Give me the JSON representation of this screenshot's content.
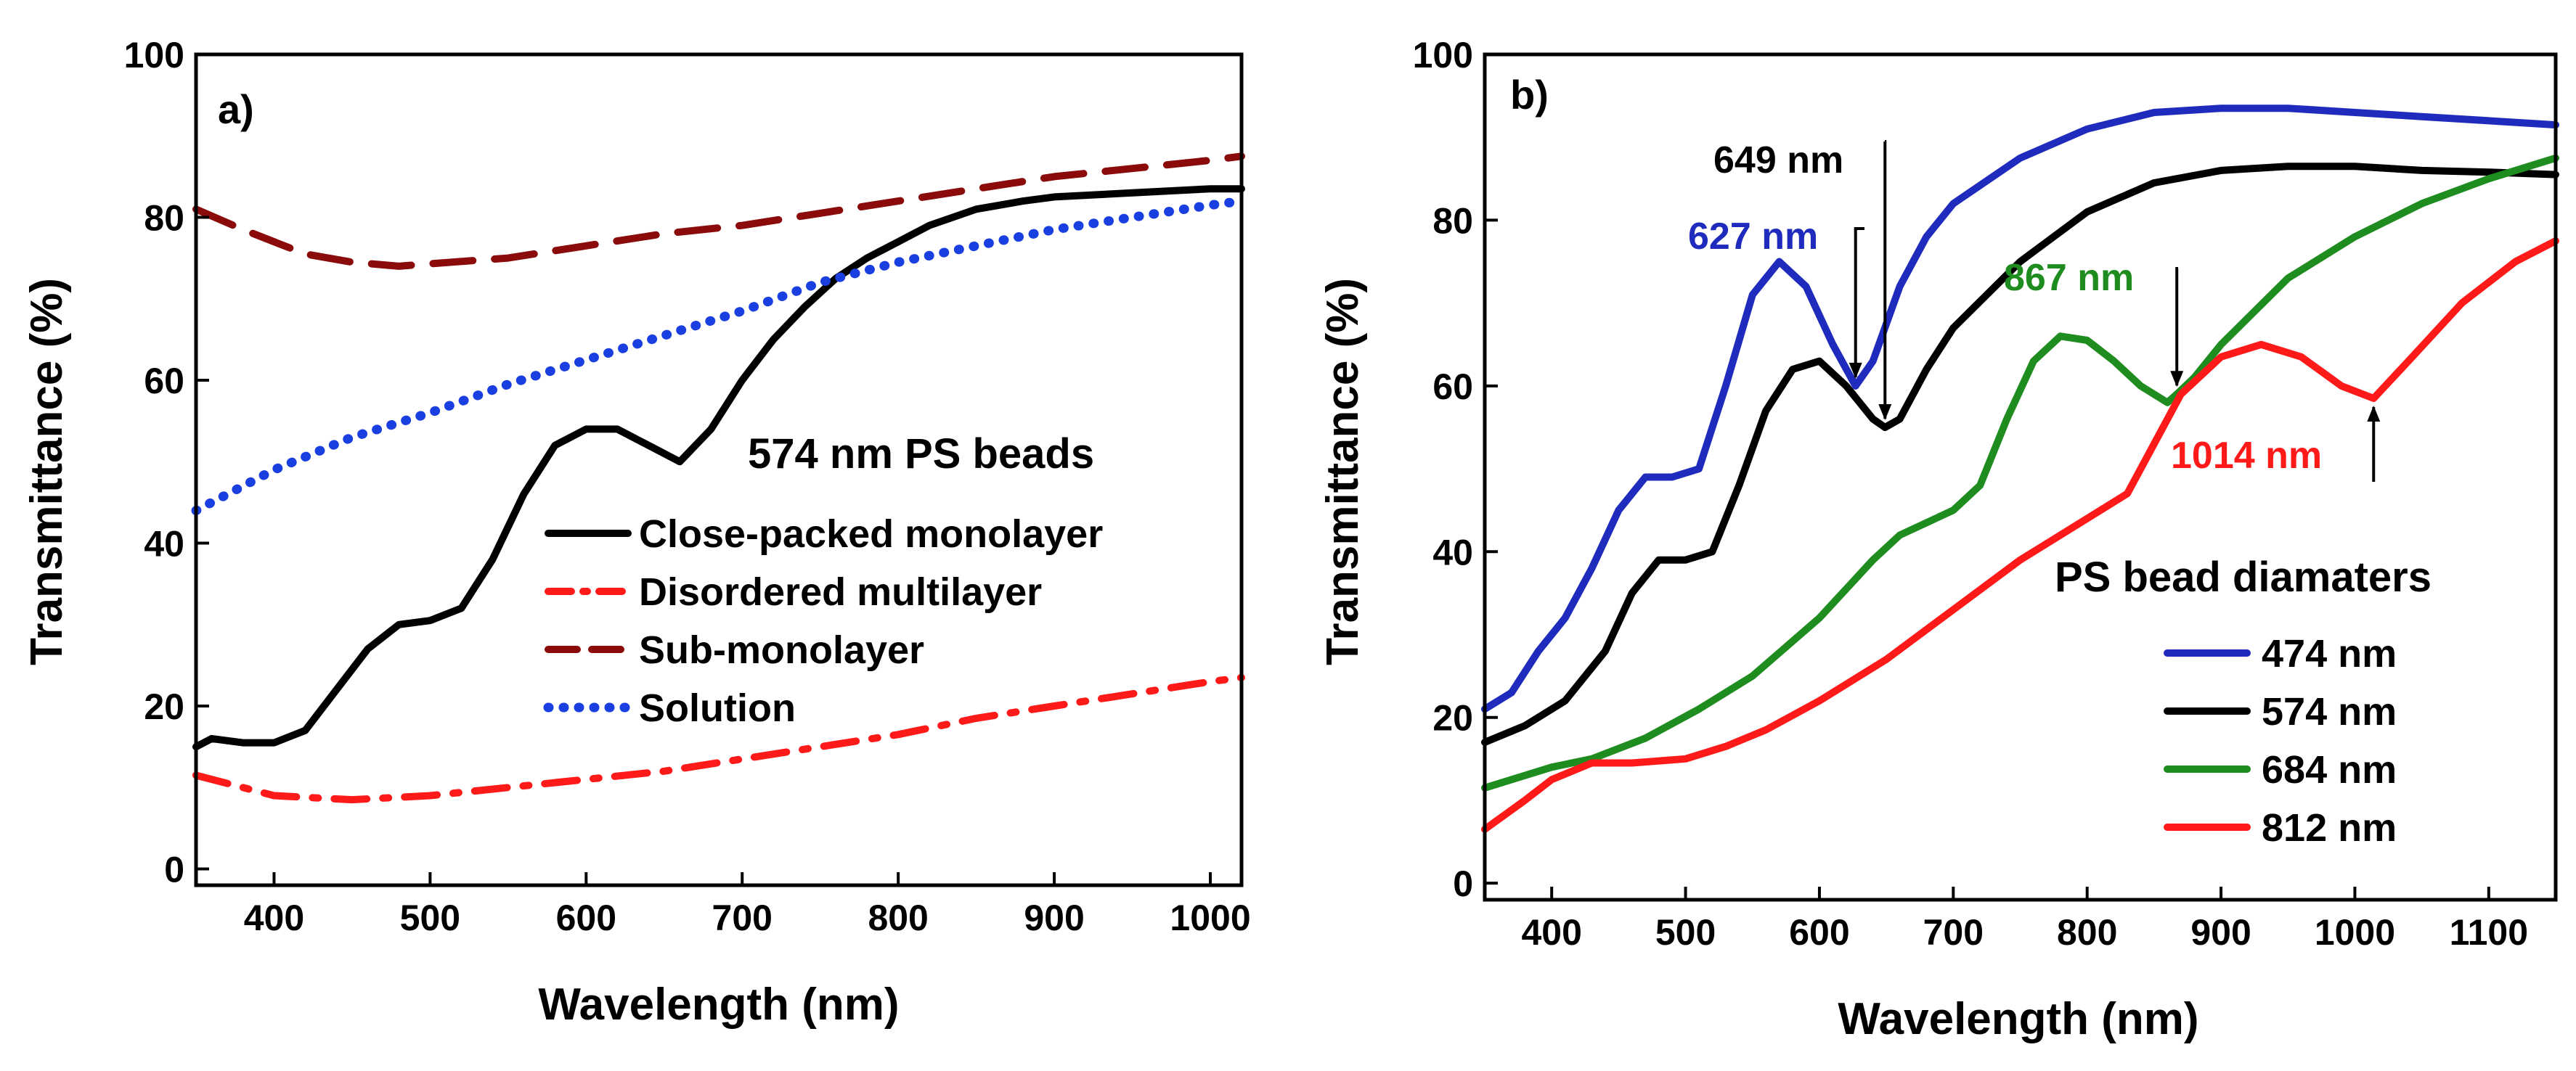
{
  "chart_data": [
    {
      "panel_label": "a)",
      "type": "line",
      "xlabel": "Wavelength (nm)",
      "ylabel": "Transmittance (%)",
      "xlim": [
        350,
        1020
      ],
      "ylim": [
        -2,
        100
      ],
      "xticks": [
        400,
        500,
        600,
        700,
        800,
        900,
        1000
      ],
      "yticks": [
        0,
        20,
        40,
        60,
        80,
        100
      ],
      "legend_title": "574 nm PS beads",
      "legend_position": "center-right",
      "series": [
        {
          "name": "Close-packed monolayer",
          "color": "#000000",
          "style": "solid",
          "x": [
            350,
            360,
            380,
            400,
            420,
            440,
            460,
            480,
            500,
            520,
            540,
            560,
            580,
            600,
            620,
            640,
            660,
            680,
            700,
            720,
            740,
            760,
            780,
            800,
            820,
            850,
            880,
            900,
            950,
            1000,
            1020
          ],
          "y": [
            15,
            16,
            15.5,
            15.5,
            17,
            22,
            27,
            30,
            30.5,
            32,
            38,
            46,
            52,
            54,
            54,
            52,
            50,
            54,
            60,
            65,
            69,
            72.5,
            75,
            77,
            79,
            81,
            82,
            82.5,
            83,
            83.5,
            83.5
          ]
        },
        {
          "name": "Disordered multilayer",
          "color": "#ff1a1a",
          "style": "dashdot",
          "x": [
            350,
            380,
            400,
            420,
            450,
            480,
            500,
            550,
            600,
            650,
            700,
            750,
            800,
            850,
            900,
            950,
            1000,
            1020
          ],
          "y": [
            11.5,
            10,
            9,
            8.8,
            8.5,
            8.8,
            9,
            10,
            11,
            12,
            13.5,
            15,
            16.5,
            18.5,
            20,
            21.5,
            23,
            23.5
          ]
        },
        {
          "name": "Sub-monolayer",
          "color": "#8b0a0a",
          "style": "dashed",
          "x": [
            350,
            380,
            400,
            420,
            450,
            480,
            500,
            550,
            600,
            650,
            700,
            750,
            800,
            850,
            900,
            950,
            1000,
            1020
          ],
          "y": [
            81,
            78.5,
            77,
            75.5,
            74.5,
            74,
            74.3,
            75,
            76.5,
            78,
            79,
            80.5,
            82,
            83.5,
            85,
            86,
            87,
            87.5
          ]
        },
        {
          "name": "Solution",
          "color": "#1a3fe0",
          "style": "dotted",
          "x": [
            350,
            380,
            400,
            450,
            500,
            550,
            600,
            650,
            700,
            750,
            800,
            850,
            900,
            950,
            1000,
            1020
          ],
          "y": [
            44,
            47,
            49,
            53,
            56,
            59.5,
            62.5,
            65.5,
            68.5,
            72,
            74.5,
            76.5,
            78.5,
            80,
            81.5,
            82
          ]
        }
      ]
    },
    {
      "panel_label": "b)",
      "type": "line",
      "xlabel": "Wavelength (nm)",
      "ylabel": "Transmittance (%)",
      "xlim": [
        350,
        1150
      ],
      "ylim": [
        -2,
        100
      ],
      "xticks": [
        400,
        500,
        600,
        700,
        800,
        900,
        1000,
        1100
      ],
      "yticks": [
        0,
        20,
        40,
        60,
        80,
        100
      ],
      "legend_title": "PS bead diamaters",
      "legend_position": "center-right",
      "series": [
        {
          "name": "474 nm",
          "color": "#1f2bbd",
          "style": "solid",
          "x": [
            350,
            370,
            390,
            410,
            430,
            450,
            470,
            490,
            510,
            530,
            550,
            570,
            590,
            610,
            627,
            640,
            660,
            680,
            700,
            750,
            800,
            850,
            900,
            950,
            1000,
            1050,
            1100,
            1150
          ],
          "y": [
            21,
            23,
            28,
            32,
            38,
            45,
            49,
            49,
            50,
            60,
            71,
            75,
            72,
            65,
            60,
            63,
            72,
            78,
            82,
            87.5,
            91,
            93,
            93.5,
            93.5,
            93,
            92.5,
            92,
            91.5
          ]
        },
        {
          "name": "574 nm",
          "color": "#000000",
          "style": "solid",
          "x": [
            350,
            380,
            410,
            440,
            460,
            480,
            500,
            520,
            540,
            560,
            580,
            600,
            620,
            640,
            649,
            660,
            680,
            700,
            750,
            800,
            850,
            900,
            950,
            1000,
            1050,
            1100,
            1150
          ],
          "y": [
            17,
            19,
            22,
            28,
            35,
            39,
            39,
            40,
            48,
            57,
            62,
            63,
            60,
            56,
            55,
            56,
            62,
            67,
            75,
            81,
            84.5,
            86,
            86.5,
            86.5,
            86,
            85.8,
            85.5
          ]
        },
        {
          "name": "684 nm",
          "color": "#1e8c1e",
          "style": "solid",
          "x": [
            350,
            400,
            430,
            470,
            510,
            550,
            600,
            640,
            660,
            700,
            720,
            740,
            760,
            780,
            800,
            820,
            840,
            860,
            867,
            880,
            900,
            950,
            1000,
            1050,
            1100,
            1150
          ],
          "y": [
            11.5,
            14,
            15,
            17.5,
            21,
            25,
            32,
            39,
            42,
            45,
            48,
            56,
            63,
            66,
            65.5,
            63,
            60,
            58,
            59,
            61,
            65,
            73,
            78,
            82,
            85,
            87.5
          ]
        },
        {
          "name": "812 nm",
          "color": "#ff1a1a",
          "style": "solid",
          "x": [
            350,
            380,
            400,
            430,
            460,
            500,
            530,
            560,
            600,
            650,
            700,
            750,
            800,
            830,
            850,
            870,
            900,
            930,
            960,
            990,
            1014,
            1040,
            1080,
            1120,
            1150
          ],
          "y": [
            6.5,
            10,
            12.5,
            14.5,
            14.5,
            15,
            16.5,
            18.5,
            22,
            27,
            33,
            39,
            44,
            47,
            53,
            59,
            63.5,
            65,
            63.5,
            60,
            58.5,
            63,
            70,
            75,
            77.5
          ]
        }
      ],
      "annotations": [
        {
          "text": "627 nm",
          "x": 627,
          "y": 60,
          "color": "#1f2bbd"
        },
        {
          "text": "649 nm",
          "x": 649,
          "y": 55,
          "color": "#000000"
        },
        {
          "text": "867 nm",
          "x": 867,
          "y": 59,
          "color": "#1e8c1e"
        },
        {
          "text": "1014 nm",
          "x": 1014,
          "y": 58.5,
          "color": "#ff1a1a"
        }
      ]
    }
  ]
}
